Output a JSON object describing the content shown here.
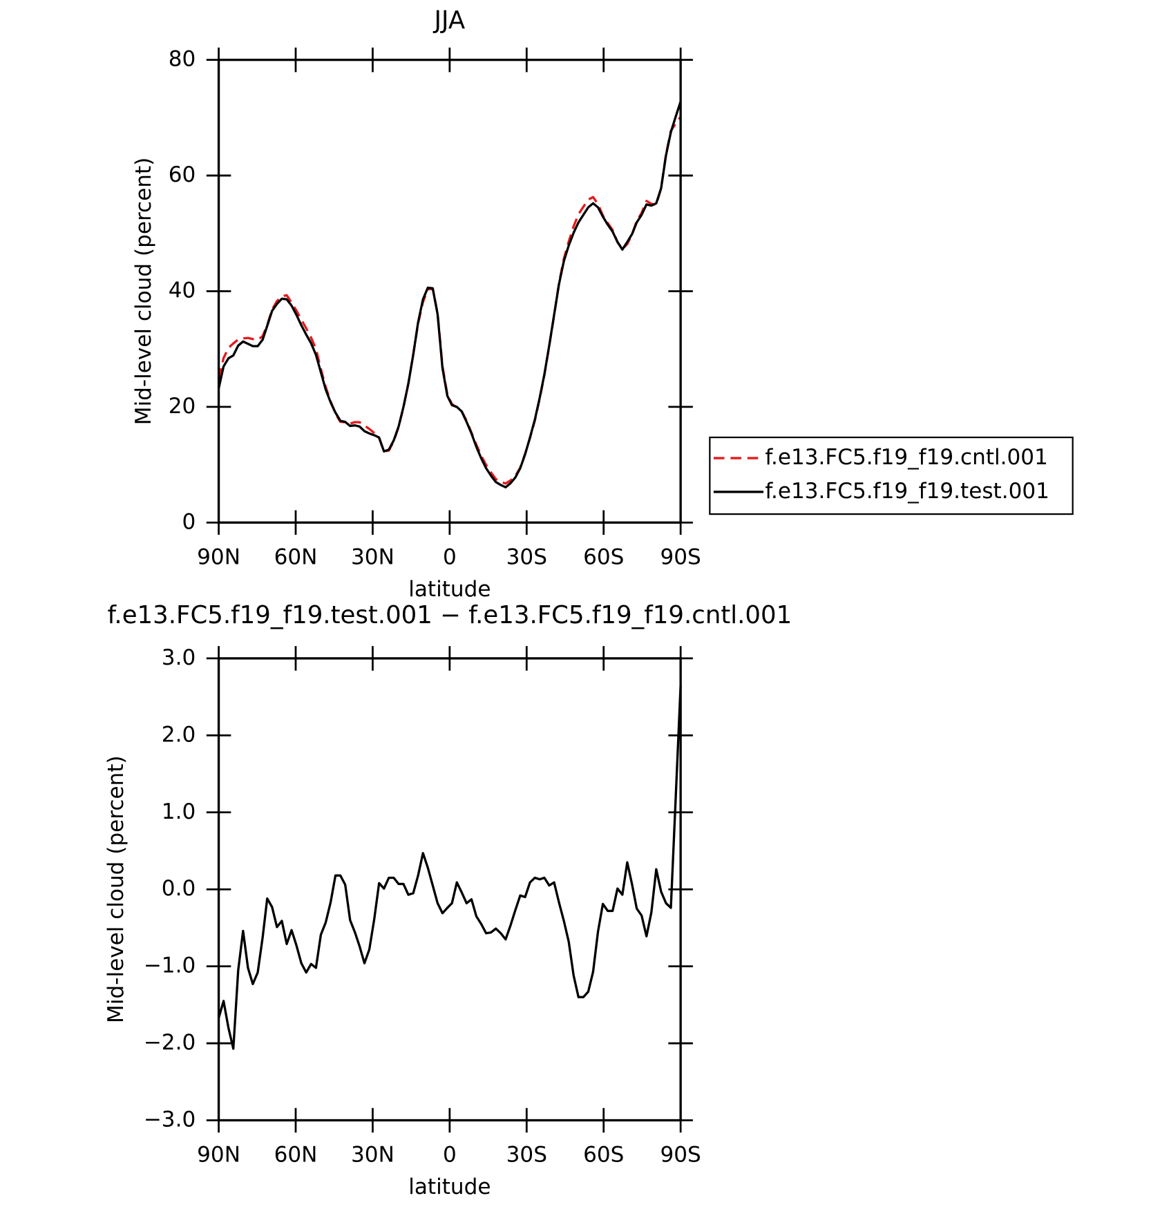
{
  "chart_data": [
    {
      "type": "line",
      "title": "JJA",
      "ylabel": "Mid-level cloud (percent)",
      "xlabel": "latitude",
      "x": [
        90,
        88.1,
        86.2,
        84.3,
        82.4,
        80.5,
        78.6,
        76.7,
        74.8,
        72.9,
        71.1,
        69.2,
        67.3,
        65.4,
        63.5,
        61.6,
        59.7,
        57.8,
        55.9,
        54,
        52.1,
        50.2,
        48.3,
        46.4,
        44.5,
        42.6,
        40.7,
        38.8,
        36.9,
        35.1,
        33.2,
        31.3,
        29.4,
        27.5,
        25.6,
        23.7,
        21.8,
        19.9,
        18,
        16.1,
        14.2,
        12.3,
        10.4,
        8.5,
        6.6,
        4.7,
        2.8,
        0.9,
        -0.9,
        -2.8,
        -4.7,
        -6.6,
        -8.5,
        -10.4,
        -12.3,
        -14.2,
        -16.1,
        -18,
        -19.9,
        -21.8,
        -23.7,
        -25.6,
        -27.5,
        -29.4,
        -31.3,
        -33.2,
        -35.1,
        -36.9,
        -38.8,
        -40.7,
        -42.6,
        -44.5,
        -46.4,
        -48.3,
        -50.2,
        -52.1,
        -54,
        -55.9,
        -57.8,
        -59.7,
        -61.6,
        -63.5,
        -65.4,
        -67.3,
        -69.2,
        -71.1,
        -72.9,
        -74.8,
        -76.7,
        -78.6,
        -80.5,
        -82.4,
        -84.3,
        -86.2,
        -88.1,
        -90
      ],
      "series": [
        {
          "name": "f.e13.FC5.f19_f19.cntl.001",
          "color": "#e41a1c",
          "linestyle": "dashed",
          "values": [
            24.87,
            28.45,
            30.2,
            30.97,
            31.65,
            31.84,
            31.92,
            31.73,
            31.58,
            32.23,
            34.12,
            36.83,
            38.29,
            39.11,
            39.31,
            38.03,
            36.63,
            35.06,
            33.58,
            31.97,
            30.02,
            26.59,
            23.43,
            20.97,
            18.82,
            17.42,
            17.34,
            17.1,
            17.36,
            17.34,
            16.76,
            16.18,
            15.49,
            14.62,
            12.29,
            12.45,
            14.05,
            16.53,
            19.93,
            24.07,
            29.05,
            34.42,
            38.13,
            40.32,
            40.45,
            36.18,
            27.01,
            22.14,
            20.48,
            19.91,
            19.24,
            17.58,
            15.53,
            13.45,
            11.55,
            9.97,
            8.66,
            7.51,
            7.07,
            6.75,
            7.27,
            8.07,
            9.48,
            11.9,
            14.61,
            17.65,
            21.47,
            25.45,
            30.55,
            35.81,
            41.37,
            45.61,
            48.58,
            51.22,
            53.3,
            54.6,
            55.83,
            56.27,
            55.05,
            53.09,
            51.78,
            50.58,
            48.49,
            47.27,
            48.15,
            49.84,
            52.15,
            53.54,
            55.61,
            55.1,
            54.94,
            57.83,
            63.68,
            67.74,
            69.0,
            70.15
          ]
        },
        {
          "name": "f.e13.FC5.f19_f19.test.001",
          "color": "#000000",
          "linestyle": "solid",
          "values": [
            23.2,
            27,
            28.4,
            28.9,
            30.6,
            31.3,
            30.9,
            30.5,
            30.5,
            31.6,
            34,
            36.6,
            37.8,
            38.7,
            38.6,
            37.5,
            35.9,
            34.1,
            32.5,
            31,
            29,
            26,
            23,
            20.8,
            19,
            17.6,
            17.4,
            16.7,
            16.8,
            16.6,
            15.8,
            15.4,
            15.1,
            14.7,
            12.3,
            12.6,
            14.2,
            16.6,
            20,
            24,
            29,
            34.6,
            38.6,
            40.6,
            40.5,
            36,
            26.7,
            21.9,
            20.3,
            20,
            19.2,
            17.4,
            15.4,
            13.1,
            11.1,
            9.4,
            8.1,
            7,
            6.5,
            6.1,
            6.8,
            7.8,
            9.4,
            11.8,
            14.7,
            17.8,
            21.6,
            25.6,
            30.6,
            35.9,
            41.2,
            45.2,
            47.9,
            50.1,
            51.9,
            53.2,
            54.5,
            55.2,
            54.5,
            52.9,
            51.5,
            50.3,
            48.5,
            47.2,
            48.5,
            49.9,
            51.9,
            53.2,
            55,
            54.8,
            55.2,
            57.8,
            63.5,
            67.5,
            70.2,
            72.8
          ]
        }
      ],
      "legend": "right",
      "xlim": [
        90,
        -90
      ],
      "xticks": [
        {
          "value": 90,
          "label": "90N"
        },
        {
          "value": 60,
          "label": "60N"
        },
        {
          "value": 30,
          "label": "30N"
        },
        0,
        {
          "value": -30,
          "label": "30S"
        },
        {
          "value": -60,
          "label": "60S"
        },
        {
          "value": -90,
          "label": "90S"
        }
      ],
      "ylim": [
        0,
        80
      ],
      "yticks": [
        0,
        20,
        40,
        60,
        80
      ]
    },
    {
      "type": "line",
      "title": "f.e13.FC5.f19_f19.test.001 − f.e13.FC5.f19_f19.cntl.001",
      "ylabel": "Mid-level cloud (percent)",
      "xlabel": "latitude",
      "x": [
        90,
        88.1,
        86.2,
        84.3,
        82.4,
        80.5,
        78.6,
        76.7,
        74.8,
        72.9,
        71.1,
        69.2,
        67.3,
        65.4,
        63.5,
        61.6,
        59.7,
        57.8,
        55.9,
        54,
        52.1,
        50.2,
        48.3,
        46.4,
        44.5,
        42.6,
        40.7,
        38.8,
        36.9,
        35.1,
        33.2,
        31.3,
        29.4,
        27.5,
        25.6,
        23.7,
        21.8,
        19.9,
        18,
        16.1,
        14.2,
        12.3,
        10.4,
        8.5,
        6.6,
        4.7,
        2.8,
        0.9,
        -0.9,
        -2.8,
        -4.7,
        -6.6,
        -8.5,
        -10.4,
        -12.3,
        -14.2,
        -16.1,
        -18,
        -19.9,
        -21.8,
        -23.7,
        -25.6,
        -27.5,
        -29.4,
        -31.3,
        -33.2,
        -35.1,
        -36.9,
        -38.8,
        -40.7,
        -42.6,
        -44.5,
        -46.4,
        -48.3,
        -50.2,
        -52.1,
        -54,
        -55.9,
        -57.8,
        -59.7,
        -61.6,
        -63.5,
        -65.4,
        -67.3,
        -69.2,
        -71.1,
        -72.9,
        -74.8,
        -76.7,
        -78.6,
        -80.5,
        -82.4,
        -84.3,
        -86.2,
        -88.1,
        -90
      ],
      "color": "#000000",
      "values": [
        -1.67,
        -1.45,
        -1.8,
        -2.07,
        -1.05,
        -0.54,
        -1.02,
        -1.23,
        -1.08,
        -0.63,
        -0.12,
        -0.23,
        -0.49,
        -0.41,
        -0.71,
        -0.53,
        -0.73,
        -0.96,
        -1.08,
        -0.97,
        -1.02,
        -0.59,
        -0.43,
        -0.17,
        0.18,
        0.18,
        0.06,
        -0.4,
        -0.56,
        -0.74,
        -0.96,
        -0.78,
        -0.39,
        0.08,
        0.01,
        0.15,
        0.15,
        0.07,
        0.07,
        -0.07,
        -0.05,
        0.18,
        0.47,
        0.28,
        0.05,
        -0.18,
        -0.31,
        -0.24,
        -0.18,
        0.09,
        -0.04,
        -0.18,
        -0.13,
        -0.35,
        -0.45,
        -0.57,
        -0.56,
        -0.51,
        -0.57,
        -0.65,
        -0.47,
        -0.27,
        -0.08,
        -0.1,
        0.09,
        0.15,
        0.13,
        0.15,
        0.05,
        0.09,
        -0.17,
        -0.41,
        -0.68,
        -1.12,
        -1.4,
        -1.4,
        -1.33,
        -1.07,
        -0.55,
        -0.19,
        -0.28,
        -0.28,
        0.01,
        -0.07,
        0.35,
        0.06,
        -0.25,
        -0.34,
        -0.61,
        -0.3,
        0.26,
        -0.03,
        -0.18,
        -0.24,
        1.2,
        2.65
      ],
      "xlim": [
        90,
        -90
      ],
      "xticks": [
        {
          "value": 90,
          "label": "90N"
        },
        {
          "value": 60,
          "label": "60N"
        },
        {
          "value": 30,
          "label": "30N"
        },
        0,
        {
          "value": -30,
          "label": "30S"
        },
        {
          "value": -60,
          "label": "60S"
        },
        {
          "value": -90,
          "label": "90S"
        }
      ],
      "ylim": [
        -3,
        3
      ],
      "yticks": [
        {
          "value": -3,
          "label": "−3.0"
        },
        {
          "value": -2,
          "label": "−2.0"
        },
        {
          "value": -1,
          "label": "−1.0"
        },
        {
          "value": 0,
          "label": "0.0"
        },
        {
          "value": 1,
          "label": "1.0"
        },
        {
          "value": 2,
          "label": "2.0"
        },
        {
          "value": 3,
          "label": "3.0"
        }
      ]
    }
  ]
}
